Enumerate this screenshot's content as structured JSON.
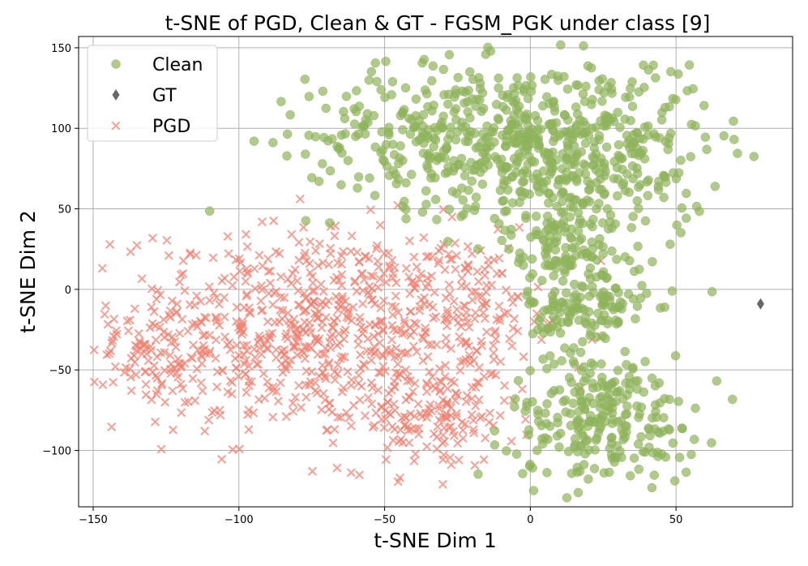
{
  "chart_data": {
    "type": "scatter",
    "title": "t-SNE of PGD, Clean & GT - FGSM_PGK under class [9]",
    "xlabel": "t-SNE Dim 1",
    "ylabel": "t-SNE Dim 2",
    "xlim": [
      -155,
      90
    ],
    "ylim": [
      -135,
      157
    ],
    "xticks": [
      -150,
      -100,
      -50,
      0,
      50
    ],
    "yticks": [
      -100,
      -50,
      0,
      50,
      100,
      150
    ],
    "grid": true,
    "legend_position": "top-left",
    "series": [
      {
        "name": "Clean",
        "marker": "circle",
        "color": "#8fb35b",
        "clusters": [
          {
            "cx": -20,
            "cy": 95,
            "sx": 28,
            "sy": 22,
            "n": 420
          },
          {
            "cx": 25,
            "cy": 85,
            "sx": 18,
            "sy": 30,
            "n": 280
          },
          {
            "cx": 12,
            "cy": 30,
            "sx": 10,
            "sy": 20,
            "n": 140
          },
          {
            "cx": 20,
            "cy": -15,
            "sx": 10,
            "sy": 12,
            "n": 110
          },
          {
            "cx": 25,
            "cy": -80,
            "sx": 16,
            "sy": 20,
            "n": 250
          }
        ]
      },
      {
        "name": "GT",
        "marker": "diamond",
        "color": "#666666",
        "points": [
          [
            79,
            -9
          ]
        ]
      },
      {
        "name": "PGD",
        "marker": "x",
        "color": "#f08070",
        "clusters": [
          {
            "cx": -75,
            "cy": -25,
            "sx": 33,
            "sy": 32,
            "n": 700
          },
          {
            "cx": -35,
            "cy": -80,
            "sx": 15,
            "sy": 16,
            "n": 140
          },
          {
            "cx": -130,
            "cy": -40,
            "sx": 8,
            "sy": 18,
            "n": 60
          },
          {
            "cx": -20,
            "cy": -15,
            "sx": 12,
            "sy": 25,
            "n": 100
          }
        ]
      }
    ]
  }
}
